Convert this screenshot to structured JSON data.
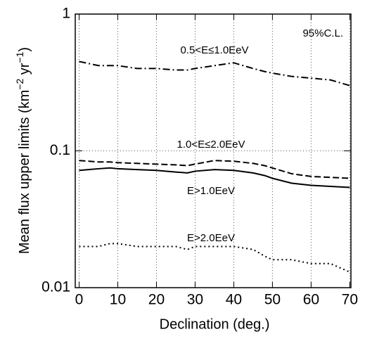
{
  "chart_data": {
    "type": "line",
    "xlabel": "Declination (deg.)",
    "ylabel_parts": [
      "Mean flux upper limits (km",
      "−2",
      " yr",
      "−1",
      ")"
    ],
    "annotation": "95%C.L.",
    "x": [
      0,
      5,
      8,
      10,
      15,
      20,
      25,
      28,
      30,
      35,
      40,
      45,
      48,
      50,
      55,
      60,
      65,
      70
    ],
    "series": [
      {
        "name": "0.5<E≤1.0EeV",
        "color": "#000",
        "style": "dashdot",
        "values": [
          0.45,
          0.42,
          0.42,
          0.42,
          0.4,
          0.4,
          0.39,
          0.39,
          0.4,
          0.42,
          0.44,
          0.4,
          0.38,
          0.37,
          0.35,
          0.34,
          0.33,
          0.3
        ]
      },
      {
        "name": "1.0<E≤2.0EeV",
        "color": "#000",
        "style": "dashed",
        "values": [
          0.085,
          0.083,
          0.083,
          0.082,
          0.081,
          0.08,
          0.079,
          0.078,
          0.08,
          0.085,
          0.084,
          0.081,
          0.078,
          0.075,
          0.068,
          0.065,
          0.064,
          0.063
        ]
      },
      {
        "name": "E>1.0EeV",
        "color": "#000",
        "style": "solid",
        "values": [
          0.072,
          0.074,
          0.075,
          0.074,
          0.073,
          0.072,
          0.07,
          0.069,
          0.071,
          0.073,
          0.072,
          0.069,
          0.066,
          0.063,
          0.058,
          0.056,
          0.055,
          0.054
        ]
      },
      {
        "name": "E>2.0EeV",
        "color": "#000",
        "style": "dotted",
        "values": [
          0.02,
          0.02,
          0.021,
          0.021,
          0.02,
          0.02,
          0.02,
          0.019,
          0.02,
          0.02,
          0.02,
          0.019,
          0.017,
          0.016,
          0.016,
          0.015,
          0.015,
          0.013
        ]
      }
    ],
    "xlim": [
      -1,
      70.3
    ],
    "xticks": [
      0,
      10,
      20,
      30,
      40,
      50,
      60,
      70
    ],
    "ylim": [
      0.01,
      1
    ],
    "yticks": [
      0.01,
      0.1,
      1
    ],
    "log_y": true,
    "grid": true
  }
}
